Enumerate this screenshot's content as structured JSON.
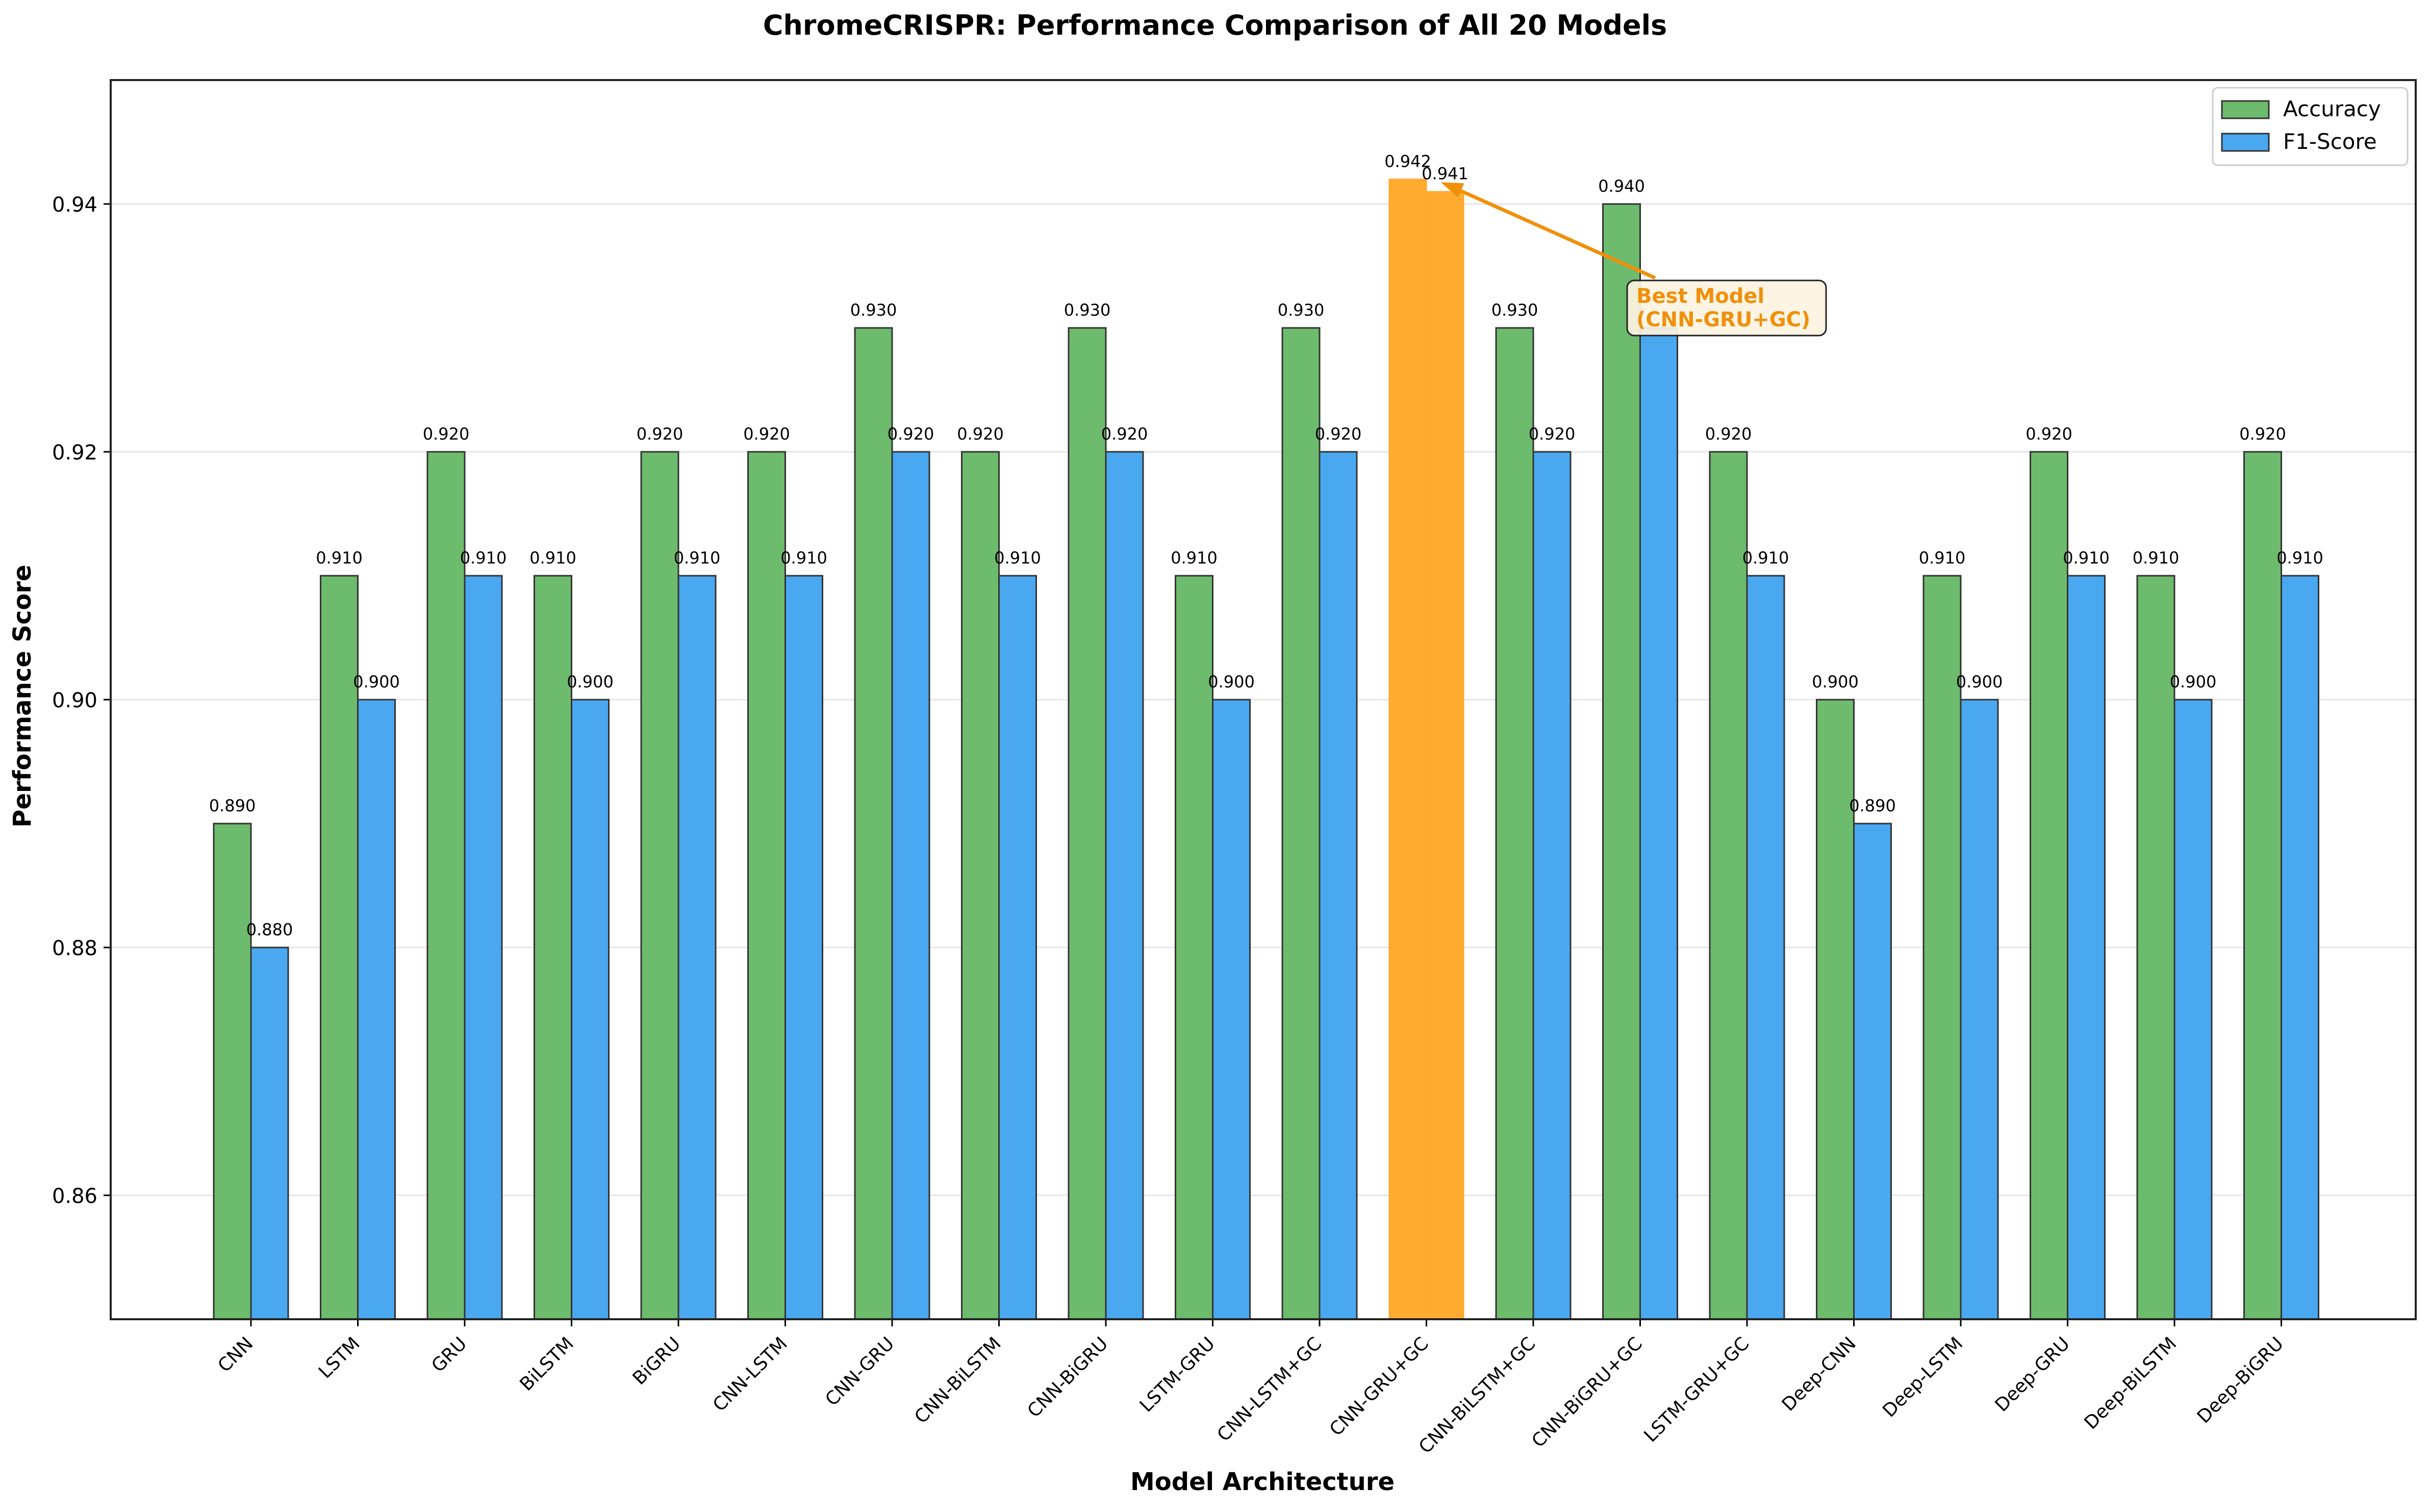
{
  "chart_data": {
    "type": "bar",
    "title": "ChromeCRISPR: Performance Comparison of All 20 Models",
    "xlabel": "Model Architecture",
    "ylabel": "Performance Score",
    "ylim": [
      0.85,
      0.95
    ],
    "yticks": [
      0.86,
      0.88,
      0.9,
      0.92,
      0.94
    ],
    "ytick_labels": [
      "0.86",
      "0.88",
      "0.90",
      "0.92",
      "0.94"
    ],
    "grid": "y-axis, light",
    "legend_position": "top-right",
    "categories": [
      "CNN",
      "LSTM",
      "GRU",
      "BiLSTM",
      "BiGRU",
      "CNN-LSTM",
      "CNN-GRU",
      "CNN-BiLSTM",
      "CNN-BiGRU",
      "LSTM-GRU",
      "CNN-LSTM+GC",
      "CNN-GRU+GC",
      "CNN-BiLSTM+GC",
      "CNN-BiGRU+GC",
      "LSTM-GRU+GC",
      "Deep-CNN",
      "Deep-LSTM",
      "Deep-GRU",
      "Deep-BiLSTM",
      "Deep-BiGRU"
    ],
    "series": [
      {
        "name": "Accuracy",
        "color": "#6dbb6d",
        "values": [
          0.89,
          0.91,
          0.92,
          0.91,
          0.92,
          0.92,
          0.93,
          0.92,
          0.93,
          0.91,
          0.93,
          0.942,
          0.93,
          0.94,
          0.92,
          0.9,
          0.91,
          0.92,
          0.91,
          0.92
        ],
        "labels": [
          "0.890",
          "0.910",
          "0.920",
          "0.910",
          "0.920",
          "0.920",
          "0.930",
          "0.920",
          "0.930",
          "0.910",
          "0.930",
          "0.942",
          "0.930",
          "0.940",
          "0.920",
          "0.900",
          "0.910",
          "0.920",
          "0.910",
          "0.920"
        ]
      },
      {
        "name": "F1-Score",
        "color": "#4aa8f0",
        "values": [
          0.88,
          0.9,
          0.91,
          0.9,
          0.91,
          0.91,
          0.92,
          0.91,
          0.92,
          0.9,
          0.92,
          0.941,
          0.92,
          0.93,
          0.91,
          0.89,
          0.9,
          0.91,
          0.9,
          0.91
        ],
        "labels": [
          "0.880",
          "0.900",
          "0.910",
          "0.900",
          "0.910",
          "0.910",
          "0.920",
          "0.910",
          "0.920",
          "0.900",
          "0.920",
          "0.941",
          "0.920",
          "",
          "0.910",
          "0.890",
          "0.900",
          "0.910",
          "0.900",
          "0.910"
        ]
      }
    ],
    "highlight": {
      "index": 11,
      "color": "#ffa726",
      "annotation": "Best Model\n(CNN-GRU+GC)",
      "annotation_color": "#f0900a"
    }
  }
}
